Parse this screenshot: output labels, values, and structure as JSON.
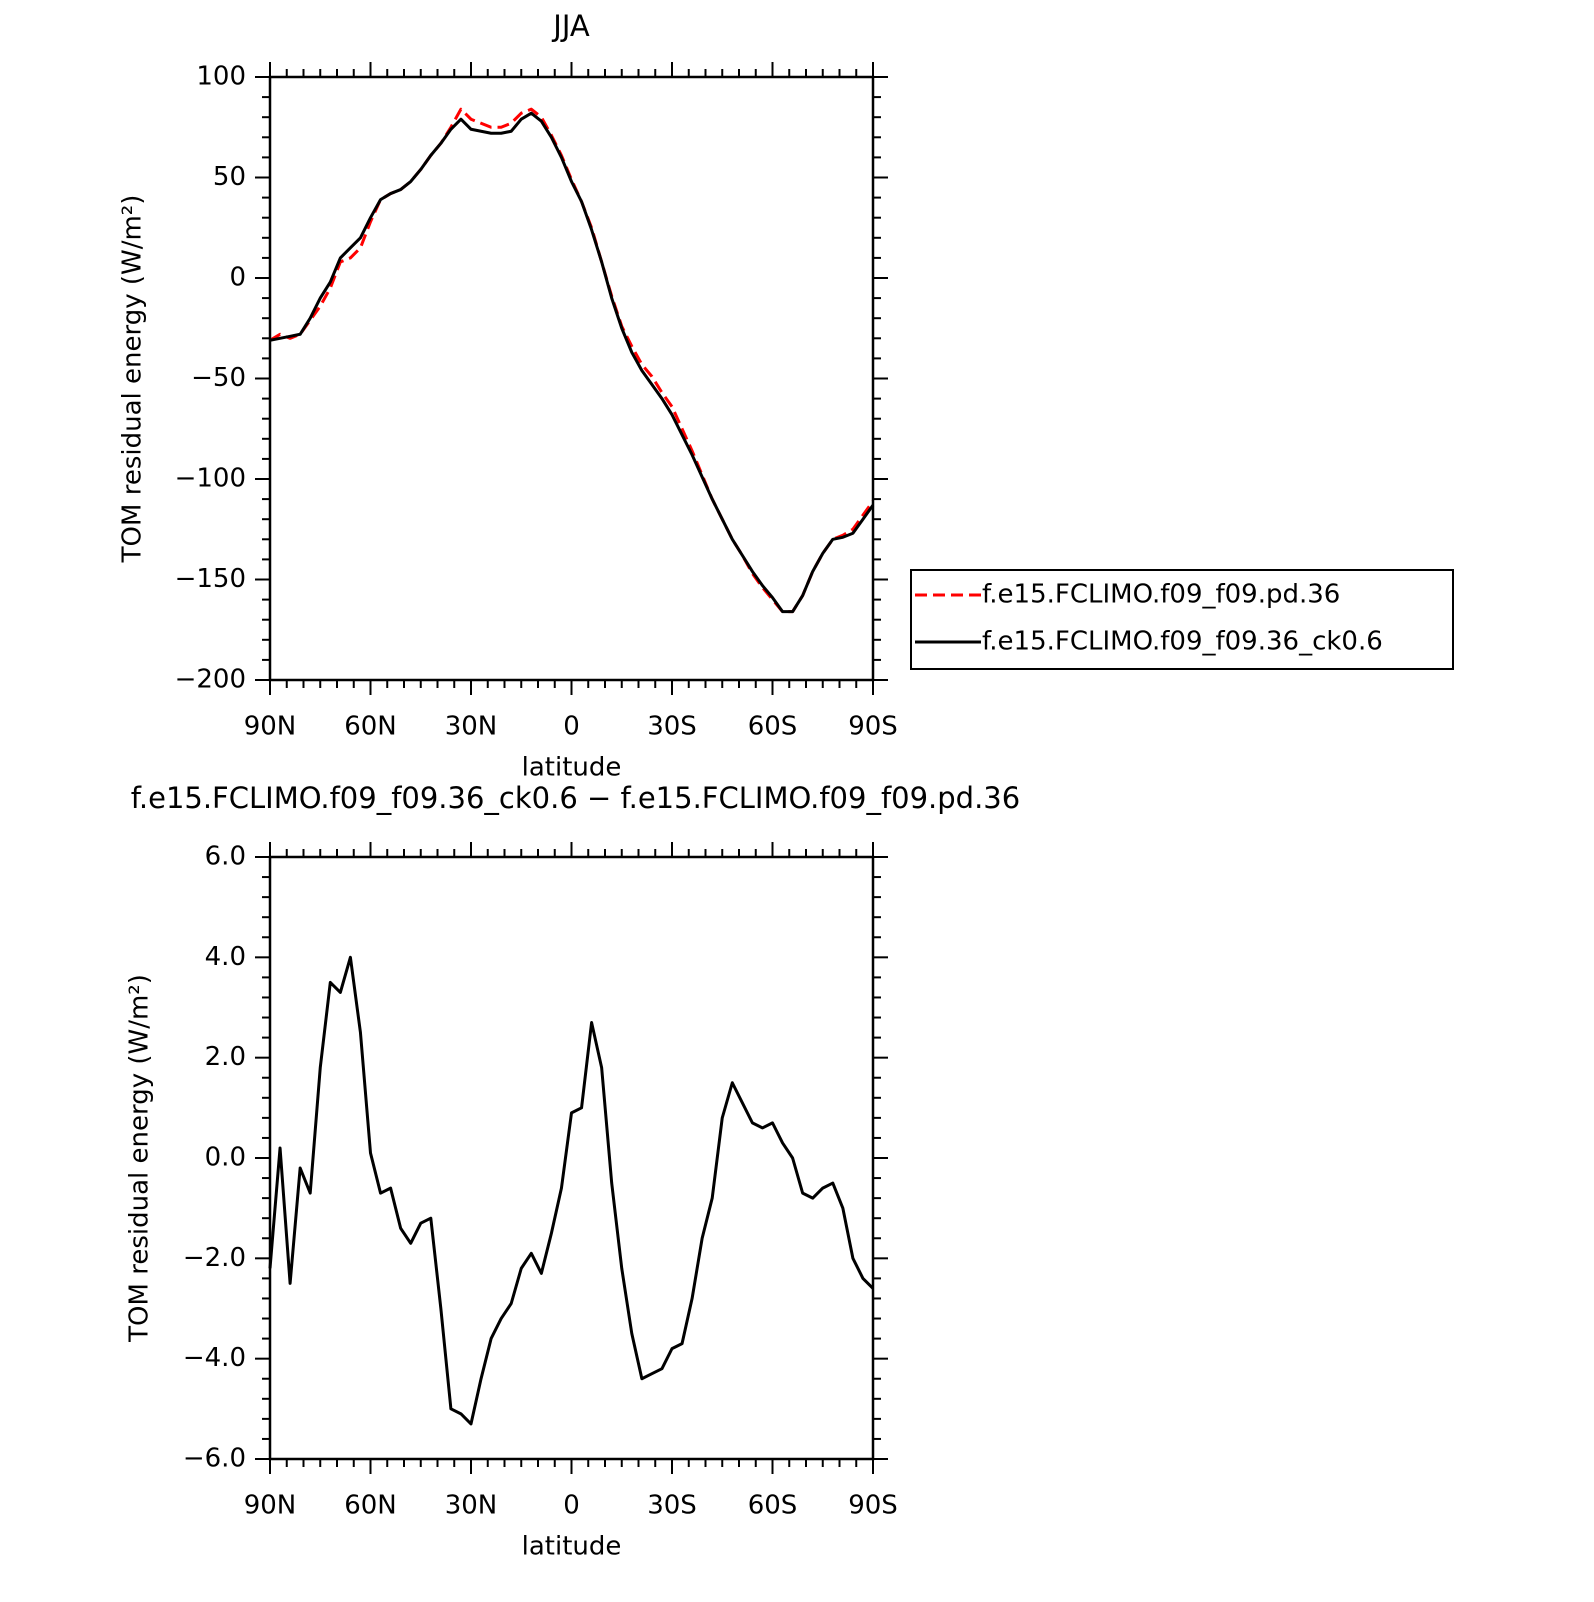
{
  "chart_data": [
    {
      "type": "line",
      "title": "JJA",
      "x_label": "latitude",
      "y_label": "TOM residual energy (W/m²)",
      "x": [
        90,
        87,
        84,
        81,
        78,
        75,
        72,
        69,
        66,
        63,
        60,
        57,
        54,
        51,
        48,
        45,
        42,
        39,
        36,
        33,
        30,
        27,
        24,
        21,
        18,
        15,
        12,
        9,
        6,
        3,
        0,
        -3,
        -6,
        -9,
        -12,
        -15,
        -18,
        -21,
        -24,
        -27,
        -30,
        -33,
        -36,
        -39,
        -42,
        -45,
        -48,
        -51,
        -54,
        -57,
        -60,
        -63,
        -66,
        -69,
        -72,
        -75,
        -78,
        -81,
        -84,
        -87,
        -90
      ],
      "xlim": [
        90,
        -90
      ],
      "xticks": [
        {
          "value": 90,
          "label": "90N"
        },
        {
          "value": 60,
          "label": "60N"
        },
        {
          "value": 30,
          "label": "30N"
        },
        0,
        {
          "value": -30,
          "label": "30S"
        },
        {
          "value": -60,
          "label": "60S"
        },
        {
          "value": -90,
          "label": "90S"
        }
      ],
      "ylim": [
        -200,
        100
      ],
      "yticks": [
        {
          "value": -200,
          "label": "−200"
        },
        {
          "value": -150,
          "label": "−150"
        },
        {
          "value": -100,
          "label": "−100"
        },
        {
          "value": -50,
          "label": "−50"
        },
        0,
        50,
        100
      ],
      "legend": "outside-right",
      "series": [
        {
          "name": "f.e15.FCLIMO.f09_f09.pd.36",
          "color": "#ff0000",
          "line_style": "dashed",
          "values": [
            -31,
            -28,
            -30,
            -28,
            -21,
            -14,
            -5,
            8,
            10,
            15,
            28,
            39,
            42,
            44,
            48,
            54,
            61,
            67,
            75,
            84,
            79,
            77,
            75,
            75,
            77,
            82,
            84,
            80,
            71,
            61,
            49,
            38,
            25,
            8,
            -9,
            -24,
            -34,
            -43,
            -49,
            -57,
            -64,
            -75,
            -86,
            -98,
            -110,
            -120,
            -130,
            -138,
            -147,
            -154,
            -160,
            -166,
            -166,
            -158,
            -146,
            -137,
            -130,
            -128,
            -125,
            -118,
            -111
          ]
        },
        {
          "name": "f.e15.FCLIMO.f09_f09.36_ck0.6",
          "color": "#000000",
          "line_style": "solid",
          "values": [
            -31,
            -30,
            -29,
            -28,
            -20,
            -10,
            -2,
            10,
            15,
            20,
            30,
            39,
            42,
            44,
            48,
            54,
            61,
            67,
            74,
            79,
            74,
            73,
            72,
            72,
            73,
            79,
            82,
            78,
            70,
            60,
            48,
            38,
            24,
            8,
            -10,
            -25,
            -37,
            -46,
            -53,
            -60,
            -68,
            -78,
            -88,
            -99,
            -110,
            -120,
            -130,
            -138,
            -146,
            -153,
            -159,
            -166,
            -166,
            -158,
            -146,
            -137,
            -130,
            -129,
            -127,
            -120,
            -113
          ]
        }
      ]
    },
    {
      "type": "line",
      "title": "f.e15.FCLIMO.f09_f09.36_ck0.6 − f.e15.FCLIMO.f09_f09.pd.36",
      "x_label": "latitude",
      "y_label": "TOM residual energy (W/m²)",
      "x": [
        90,
        87,
        84,
        81,
        78,
        75,
        72,
        69,
        66,
        63,
        60,
        57,
        54,
        51,
        48,
        45,
        42,
        39,
        36,
        33,
        30,
        27,
        24,
        21,
        18,
        15,
        12,
        9,
        6,
        3,
        0,
        -3,
        -6,
        -9,
        -12,
        -15,
        -18,
        -21,
        -24,
        -27,
        -30,
        -33,
        -36,
        -39,
        -42,
        -45,
        -48,
        -51,
        -54,
        -57,
        -60,
        -63,
        -66,
        -69,
        -72,
        -75,
        -78,
        -81,
        -84,
        -87,
        -90
      ],
      "xlim": [
        90,
        -90
      ],
      "xticks": [
        {
          "value": 90,
          "label": "90N"
        },
        {
          "value": 60,
          "label": "60N"
        },
        {
          "value": 30,
          "label": "30N"
        },
        0,
        {
          "value": -30,
          "label": "30S"
        },
        {
          "value": -60,
          "label": "60S"
        },
        {
          "value": -90,
          "label": "90S"
        }
      ],
      "ylim": [
        -6,
        6
      ],
      "yticks": [
        {
          "value": -6,
          "label": "−6.0"
        },
        {
          "value": -4,
          "label": "−4.0"
        },
        {
          "value": -2,
          "label": "−2.0"
        },
        {
          "value": 0,
          "label": "0.0"
        },
        {
          "value": 2,
          "label": "2.0"
        },
        {
          "value": 4,
          "label": "4.0"
        },
        {
          "value": 6,
          "label": "6.0"
        }
      ],
      "color": "#000000",
      "values": [
        -2.2,
        0.2,
        -2.5,
        -0.2,
        -0.7,
        1.8,
        3.5,
        3.3,
        4.0,
        2.5,
        0.1,
        -0.7,
        -0.6,
        -1.4,
        -1.7,
        -1.3,
        -1.2,
        -3.0,
        -5.0,
        -5.1,
        -5.3,
        -4.4,
        -3.6,
        -3.2,
        -2.9,
        -2.2,
        -1.9,
        -2.3,
        -1.5,
        -0.6,
        0.9,
        1.0,
        2.7,
        1.8,
        -0.5,
        -2.2,
        -3.5,
        -4.4,
        -4.3,
        -4.2,
        -3.8,
        -3.7,
        -2.8,
        -1.6,
        -0.8,
        0.8,
        1.5,
        1.1,
        0.7,
        0.6,
        0.7,
        0.3,
        0.0,
        -0.7,
        -0.8,
        -0.6,
        -0.5,
        -1.0,
        -2.0,
        -2.4,
        -2.6
      ]
    }
  ]
}
